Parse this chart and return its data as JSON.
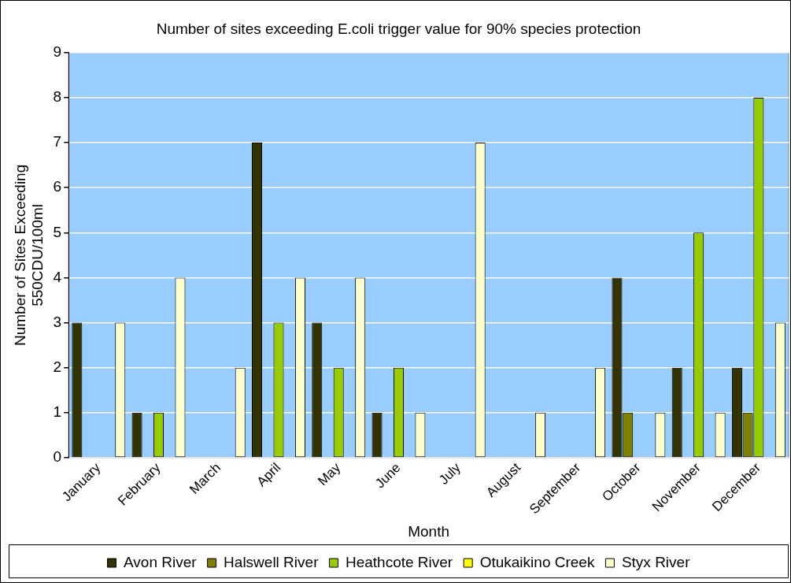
{
  "chart_data": {
    "type": "bar",
    "title": "Number of sites exceeding E.coli trigger value for 90% species protection",
    "xlabel": "Month",
    "ylabel": "Number of Sites Exceeding\n550CDU/100ml",
    "categories": [
      "January",
      "February",
      "March",
      "April",
      "May",
      "June",
      "July",
      "August",
      "September",
      "October",
      "November",
      "December"
    ],
    "series": [
      {
        "name": "Avon River",
        "color": "#333300",
        "values": [
          3,
          1,
          0,
          7,
          3,
          1,
          0,
          0,
          0,
          4,
          2,
          2
        ]
      },
      {
        "name": "Halswell River",
        "color": "#808000",
        "values": [
          0,
          0,
          0,
          0,
          0,
          0,
          0,
          0,
          0,
          1,
          0,
          1
        ]
      },
      {
        "name": "Heathcote River",
        "color": "#99cc00",
        "values": [
          0,
          1,
          0,
          3,
          2,
          2,
          0,
          0,
          0,
          0,
          5,
          8
        ]
      },
      {
        "name": "Otukaikino Creek",
        "color": "#ffff00",
        "values": [
          0,
          0,
          0,
          0,
          0,
          0,
          0,
          0,
          0,
          0,
          0,
          0
        ]
      },
      {
        "name": "Styx River",
        "color": "#ffffcc",
        "values": [
          3,
          4,
          2,
          4,
          4,
          1,
          7,
          1,
          2,
          1,
          1,
          3
        ]
      }
    ],
    "ylim": [
      0,
      9
    ],
    "yticks": [
      0,
      1,
      2,
      3,
      4,
      5,
      6,
      7,
      8,
      9
    ],
    "grid": "y",
    "legend": "bottom"
  }
}
